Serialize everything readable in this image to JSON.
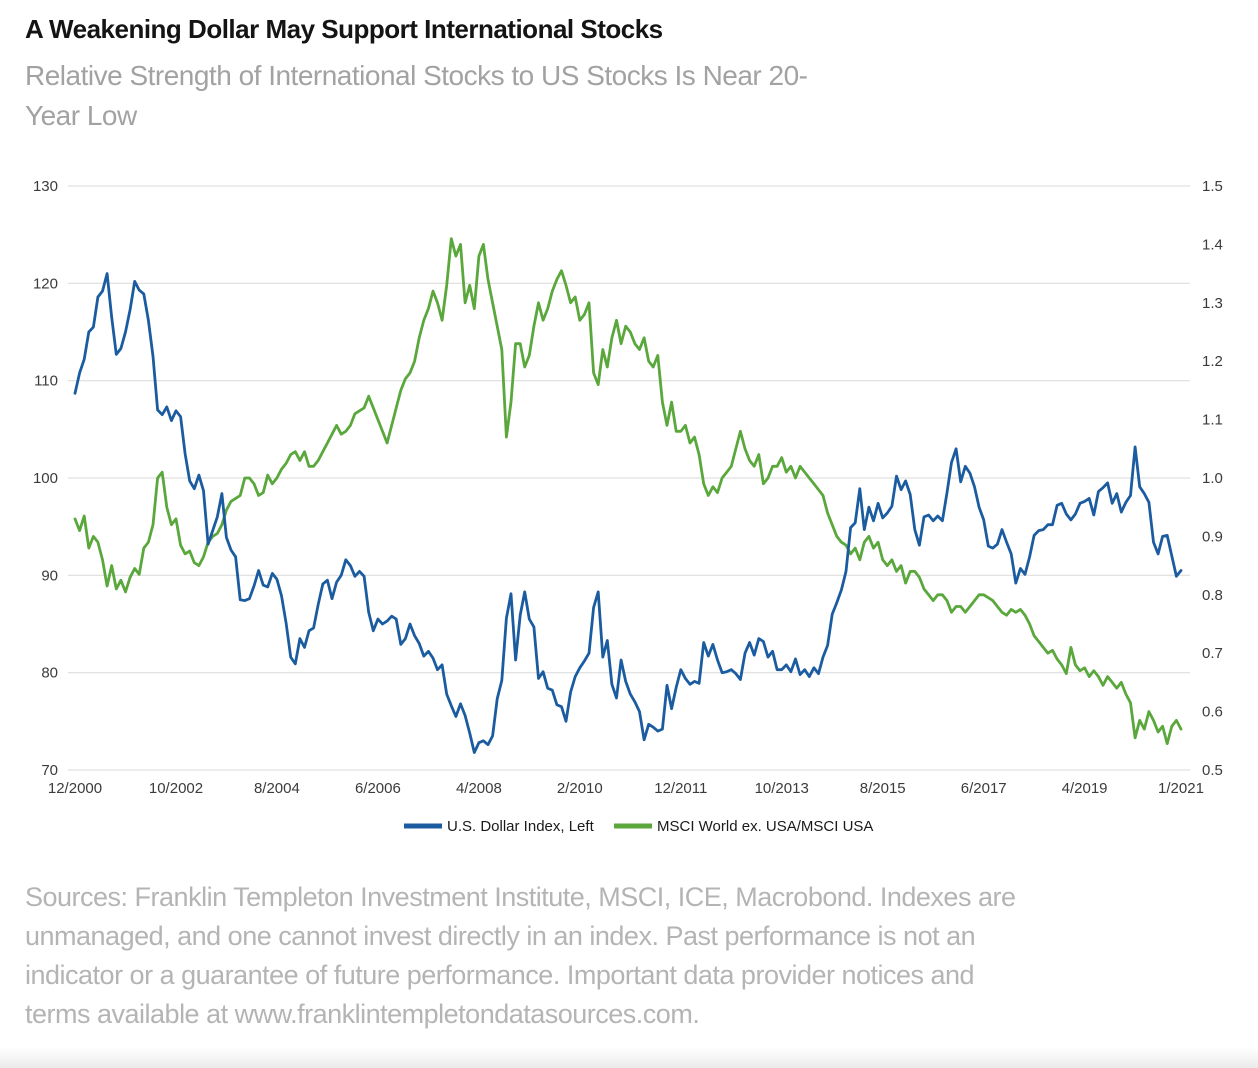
{
  "header": {
    "title": "A Weakening Dollar May Support International Stocks",
    "subtitle_line1": "Relative Strength of International Stocks to US Stocks Is Near 20-",
    "subtitle_line2": "Year Low"
  },
  "legend": {
    "series1": "U.S. Dollar Index, Left",
    "series2": "MSCI World ex. USA/MSCI USA"
  },
  "footer": {
    "lines": [
      "Sources: Franklin Templeton Investment Institute, MSCI, ICE, Macrobond. Indexes are",
      "unmanaged, and one cannot invest directly in an index. Past performance is not an",
      "indicator or a guarantee of future performance. Important data provider notices and",
      "terms available at www.franklintempletondatasources.com."
    ]
  },
  "colors": {
    "usd_line": "#1b5ca0",
    "msci_line": "#5aa73c",
    "grid": "#d9d9d9",
    "axis_text": "#3b3b3b",
    "title_text": "#141414",
    "subtitle_text": "#a2a2a2",
    "footer_text": "#b4b4b4"
  },
  "chart_data": {
    "type": "line",
    "title": "A Weakening Dollar May Support International Stocks",
    "subtitle": "Relative Strength of International Stocks to US Stocks Is Near 20-Year Low",
    "x_start": "2000-12",
    "x_step_months": 1,
    "grid": "horizontal",
    "legend_position": "bottom-center",
    "x_tick_labels": [
      "12/2000",
      "10/2002",
      "8/2004",
      "6/2006",
      "4/2008",
      "2/2010",
      "12/2011",
      "10/2013",
      "8/2015",
      "6/2017",
      "4/2019",
      "1/2021"
    ],
    "x_tick_month_index": [
      0,
      22,
      44,
      66,
      88,
      110,
      132,
      154,
      176,
      198,
      220,
      241
    ],
    "left_axis": {
      "min": 70,
      "max": 130,
      "tick_labels": [
        "130",
        "120",
        "110",
        "100",
        "90",
        "80",
        "70"
      ],
      "tick_values": [
        130,
        120,
        110,
        100,
        90,
        80,
        70
      ]
    },
    "right_axis": {
      "min": 0.5,
      "max": 1.5,
      "tick_labels": [
        "1.5",
        "1.4",
        "1.3",
        "1.2",
        "1.1",
        "1.0",
        "0.9",
        "0.8",
        "0.7",
        "0.6",
        "0.5"
      ],
      "tick_values": [
        1.5,
        1.4,
        1.3,
        1.2,
        1.1,
        1.0,
        0.9,
        0.8,
        0.7,
        0.6,
        0.5
      ]
    },
    "series": [
      {
        "name": "U.S. Dollar Index, Left",
        "axis": "left",
        "color": "#1b5ca0",
        "values": [
          108.7,
          110.8,
          112.2,
          115.0,
          115.5,
          118.6,
          119.2,
          121.0,
          116.5,
          112.7,
          113.3,
          115.0,
          117.3,
          120.2,
          119.3,
          118.9,
          116.2,
          112.5,
          107.0,
          106.5,
          107.3,
          105.9,
          106.9,
          106.3,
          102.5,
          99.7,
          98.9,
          100.3,
          98.7,
          93.2,
          94.6,
          96.0,
          98.4,
          93.9,
          92.6,
          91.9,
          87.5,
          87.4,
          87.6,
          88.9,
          90.5,
          89.0,
          88.8,
          90.2,
          89.6,
          87.9,
          85.1,
          81.6,
          80.9,
          83.5,
          82.6,
          84.3,
          84.6,
          87.0,
          89.1,
          89.5,
          87.6,
          89.3,
          90.0,
          91.6,
          91.0,
          89.9,
          90.4,
          89.9,
          86.2,
          84.3,
          85.5,
          85.0,
          85.3,
          85.8,
          85.5,
          82.9,
          83.5,
          85.0,
          83.8,
          83.0,
          81.7,
          82.2,
          81.5,
          80.3,
          80.8,
          77.8,
          76.6,
          75.5,
          76.8,
          75.6,
          73.8,
          71.8,
          72.8,
          73.0,
          72.6,
          73.5,
          77.3,
          79.2,
          85.6,
          88.1,
          81.3,
          85.9,
          88.3,
          85.5,
          84.7,
          79.4,
          80.1,
          78.4,
          78.2,
          76.7,
          76.5,
          75.0,
          78.0,
          79.6,
          80.5,
          81.2,
          82.0,
          86.7,
          88.3,
          81.6,
          83.3,
          78.8,
          77.4,
          81.3,
          79.1,
          77.8,
          77.0,
          76.0,
          73.1,
          74.7,
          74.4,
          74.0,
          74.2,
          78.7,
          76.3,
          78.5,
          80.3,
          79.4,
          78.8,
          79.1,
          78.9,
          83.1,
          81.7,
          82.9,
          81.3,
          80.0,
          80.1,
          80.3,
          79.9,
          79.3,
          82.0,
          83.1,
          81.8,
          83.5,
          83.2,
          81.6,
          82.2,
          80.3,
          80.3,
          80.8,
          80.1,
          81.4,
          79.8,
          80.3,
          79.6,
          80.5,
          79.9,
          81.6,
          82.8,
          86.0,
          87.2,
          88.5,
          90.4,
          94.9,
          95.4,
          98.9,
          94.7,
          97.0,
          95.6,
          97.4,
          95.9,
          96.4,
          97.1,
          100.2,
          98.8,
          99.7,
          98.3,
          94.7,
          93.1,
          96.0,
          96.2,
          95.6,
          96.1,
          95.6,
          98.5,
          101.6,
          103.0,
          99.6,
          101.2,
          100.5,
          99.1,
          97.0,
          95.7,
          93.0,
          92.8,
          93.2,
          94.7,
          93.4,
          92.2,
          89.2,
          90.7,
          90.1,
          91.9,
          94.1,
          94.6,
          94.7,
          95.2,
          95.2,
          97.2,
          97.4,
          96.3,
          95.7,
          96.3,
          97.4,
          97.6,
          97.9,
          96.2,
          98.6,
          99.0,
          99.5,
          97.4,
          98.4,
          96.5,
          97.5,
          98.2,
          103.2,
          99.1,
          98.4,
          97.5,
          93.4,
          92.2,
          94.0,
          94.1,
          92.0,
          89.9,
          90.5
        ]
      },
      {
        "name": "MSCI World ex. USA/MSCI USA",
        "axis": "right",
        "color": "#5aa73c",
        "values": [
          0.93,
          0.91,
          0.935,
          0.88,
          0.9,
          0.89,
          0.86,
          0.815,
          0.85,
          0.81,
          0.825,
          0.805,
          0.83,
          0.845,
          0.835,
          0.88,
          0.89,
          0.92,
          1.0,
          1.01,
          0.95,
          0.92,
          0.93,
          0.885,
          0.87,
          0.875,
          0.855,
          0.85,
          0.865,
          0.89,
          0.9,
          0.905,
          0.92,
          0.945,
          0.96,
          0.965,
          0.97,
          1.0,
          1.0,
          0.99,
          0.97,
          0.975,
          1.005,
          0.99,
          1.0,
          1.015,
          1.025,
          1.04,
          1.045,
          1.03,
          1.045,
          1.02,
          1.02,
          1.03,
          1.045,
          1.06,
          1.075,
          1.09,
          1.075,
          1.08,
          1.09,
          1.11,
          1.115,
          1.12,
          1.14,
          1.12,
          1.1,
          1.08,
          1.06,
          1.09,
          1.12,
          1.15,
          1.17,
          1.18,
          1.2,
          1.24,
          1.27,
          1.29,
          1.32,
          1.3,
          1.27,
          1.33,
          1.41,
          1.38,
          1.4,
          1.3,
          1.33,
          1.29,
          1.38,
          1.4,
          1.34,
          1.3,
          1.26,
          1.22,
          1.07,
          1.13,
          1.23,
          1.23,
          1.19,
          1.21,
          1.26,
          1.3,
          1.27,
          1.29,
          1.32,
          1.34,
          1.355,
          1.33,
          1.3,
          1.31,
          1.27,
          1.28,
          1.3,
          1.18,
          1.16,
          1.22,
          1.19,
          1.24,
          1.27,
          1.23,
          1.26,
          1.25,
          1.23,
          1.22,
          1.24,
          1.2,
          1.19,
          1.21,
          1.13,
          1.09,
          1.13,
          1.08,
          1.08,
          1.09,
          1.06,
          1.07,
          1.04,
          0.99,
          0.97,
          0.985,
          0.975,
          1.0,
          1.01,
          1.02,
          1.05,
          1.08,
          1.05,
          1.03,
          1.02,
          1.04,
          0.99,
          1.0,
          1.02,
          1.02,
          1.035,
          1.01,
          1.02,
          1.0,
          1.02,
          1.01,
          1.0,
          0.99,
          0.98,
          0.97,
          0.94,
          0.92,
          0.9,
          0.89,
          0.885,
          0.87,
          0.88,
          0.86,
          0.89,
          0.9,
          0.88,
          0.89,
          0.86,
          0.85,
          0.86,
          0.84,
          0.85,
          0.82,
          0.84,
          0.84,
          0.83,
          0.81,
          0.8,
          0.79,
          0.8,
          0.8,
          0.79,
          0.77,
          0.78,
          0.78,
          0.77,
          0.78,
          0.79,
          0.8,
          0.8,
          0.795,
          0.79,
          0.78,
          0.77,
          0.765,
          0.775,
          0.77,
          0.775,
          0.765,
          0.75,
          0.73,
          0.72,
          0.71,
          0.7,
          0.705,
          0.69,
          0.68,
          0.665,
          0.71,
          0.68,
          0.67,
          0.675,
          0.66,
          0.67,
          0.66,
          0.645,
          0.66,
          0.65,
          0.64,
          0.65,
          0.63,
          0.615,
          0.555,
          0.585,
          0.57,
          0.6,
          0.585,
          0.565,
          0.575,
          0.545,
          0.575,
          0.585,
          0.57
        ]
      }
    ]
  }
}
